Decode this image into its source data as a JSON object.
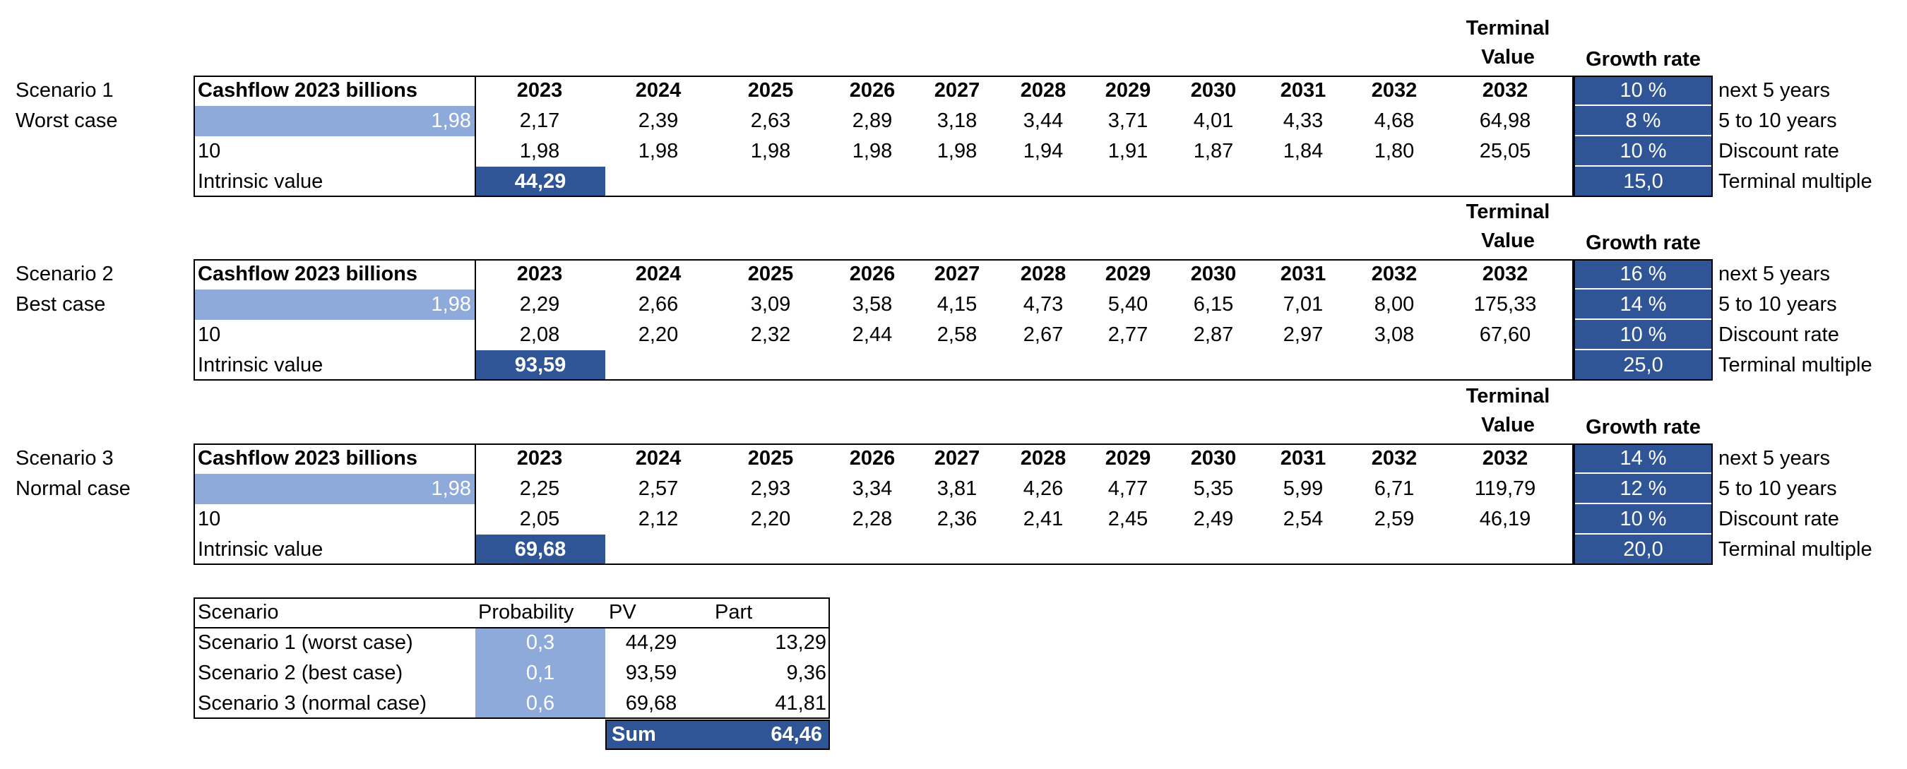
{
  "scenarios": [
    {
      "label": "Scenario 1",
      "case": "Worst case",
      "header_label": "Cashflow 2023 billions",
      "terminal_header": [
        "Terminal",
        "Value"
      ],
      "growth_header": "Growth rate",
      "years": [
        "2023",
        "2024",
        "2025",
        "2026",
        "2027",
        "2028",
        "2029",
        "2030",
        "2031",
        "2032",
        "2032"
      ],
      "base_cashflow": "1,98",
      "cashflows": [
        "2,17",
        "2,39",
        "2,63",
        "2,89",
        "3,18",
        "3,44",
        "3,71",
        "4,01",
        "4,33",
        "4,68",
        "64,98"
      ],
      "discount_label": "10",
      "discounted": [
        "1,98",
        "1,98",
        "1,98",
        "1,98",
        "1,98",
        "1,94",
        "1,91",
        "1,87",
        "1,84",
        "1,80",
        "25,05"
      ],
      "intrinsic_label": "Intrinsic value",
      "intrinsic_value": "44,29",
      "params": [
        "10 %",
        "8 %",
        "10 %",
        "15,0"
      ],
      "param_labels": [
        "next 5 years",
        "5 to 10 years",
        "Discount rate",
        "Terminal multiple"
      ]
    },
    {
      "label": "Scenario 2",
      "case": "Best case",
      "header_label": "Cashflow 2023 billions",
      "terminal_header": [
        "Terminal",
        "Value"
      ],
      "growth_header": "Growth rate",
      "years": [
        "2023",
        "2024",
        "2025",
        "2026",
        "2027",
        "2028",
        "2029",
        "2030",
        "2031",
        "2032",
        "2032"
      ],
      "base_cashflow": "1,98",
      "cashflows": [
        "2,29",
        "2,66",
        "3,09",
        "3,58",
        "4,15",
        "4,73",
        "5,40",
        "6,15",
        "7,01",
        "8,00",
        "175,33"
      ],
      "discount_label": "10",
      "discounted": [
        "2,08",
        "2,20",
        "2,32",
        "2,44",
        "2,58",
        "2,67",
        "2,77",
        "2,87",
        "2,97",
        "3,08",
        "67,60"
      ],
      "intrinsic_label": "Intrinsic value",
      "intrinsic_value": "93,59",
      "params": [
        "16 %",
        "14 %",
        "10 %",
        "25,0"
      ],
      "param_labels": [
        "next 5 years",
        "5 to 10 years",
        "Discount rate",
        "Terminal multiple"
      ]
    },
    {
      "label": "Scenario 3",
      "case": "Normal case",
      "header_label": "Cashflow 2023 billions",
      "terminal_header": [
        "Terminal",
        "Value"
      ],
      "growth_header": "Growth rate",
      "years": [
        "2023",
        "2024",
        "2025",
        "2026",
        "2027",
        "2028",
        "2029",
        "2030",
        "2031",
        "2032",
        "2032"
      ],
      "base_cashflow": "1,98",
      "cashflows": [
        "2,25",
        "2,57",
        "2,93",
        "3,34",
        "3,81",
        "4,26",
        "4,77",
        "5,35",
        "5,99",
        "6,71",
        "119,79"
      ],
      "discount_label": "10",
      "discounted": [
        "2,05",
        "2,12",
        "2,20",
        "2,28",
        "2,36",
        "2,41",
        "2,45",
        "2,49",
        "2,54",
        "2,59",
        "46,19"
      ],
      "intrinsic_label": "Intrinsic value",
      "intrinsic_value": "69,68",
      "params": [
        "14 %",
        "12 %",
        "10 %",
        "20,0"
      ],
      "param_labels": [
        "next 5 years",
        "5 to 10 years",
        "Discount rate",
        "Terminal multiple"
      ]
    }
  ],
  "summary": {
    "headers": [
      "Scenario",
      "Probability",
      "PV",
      "Part"
    ],
    "rows": [
      {
        "scenario": "Scenario 1 (worst case)",
        "probability": "0,3",
        "pv": "44,29",
        "part": "13,29"
      },
      {
        "scenario": "Scenario 2 (best case)",
        "probability": "0,1",
        "pv": "93,59",
        "part": "9,36"
      },
      {
        "scenario": "Scenario 3 (normal case)",
        "probability": "0,6",
        "pv": "69,68",
        "part": "41,81"
      }
    ],
    "sum_label": "Sum",
    "sum_value": "64,46"
  },
  "colors": {
    "light_fill": "#8eaadb",
    "dark_fill": "#2f5597",
    "text": "#000000"
  }
}
